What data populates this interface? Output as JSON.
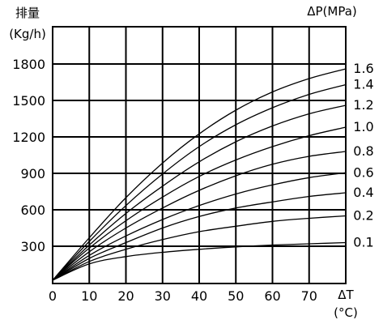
{
  "chart_data": {
    "type": "line",
    "ylabel_line1": "排量",
    "ylabel_line2": "(Kg/h)",
    "xlabel_line1": "ΔT",
    "xlabel_line2": "(°C)",
    "series_label": "ΔP(MPa)",
    "xlim": [
      0,
      80
    ],
    "ylim": [
      0,
      1800
    ],
    "x_ticks": [
      0,
      10,
      20,
      30,
      40,
      50,
      60,
      70
    ],
    "y_ticks": [
      300,
      600,
      900,
      1200,
      1500,
      1800
    ],
    "grid": true,
    "x": [
      0,
      10,
      20,
      30,
      40,
      50,
      60,
      70,
      80
    ],
    "series": [
      {
        "name": "0.1",
        "values": [
          20,
          155,
          215,
          250,
          275,
          295,
          310,
          320,
          330
        ]
      },
      {
        "name": "0.2",
        "values": [
          20,
          175,
          275,
          355,
          420,
          465,
          505,
          530,
          550
        ]
      },
      {
        "name": "0.4",
        "values": [
          20,
          200,
          330,
          450,
          545,
          615,
          665,
          710,
          740
        ]
      },
      {
        "name": "0.6",
        "values": [
          20,
          225,
          385,
          520,
          635,
          730,
          805,
          865,
          905
        ]
      },
      {
        "name": "0.8",
        "values": [
          20,
          255,
          450,
          615,
          760,
          880,
          975,
          1040,
          1080
        ]
      },
      {
        "name": "1.0",
        "values": [
          20,
          285,
          510,
          705,
          875,
          1010,
          1120,
          1210,
          1280
        ]
      },
      {
        "name": "1.2",
        "values": [
          20,
          310,
          570,
          795,
          995,
          1160,
          1290,
          1390,
          1460
        ]
      },
      {
        "name": "1.4",
        "values": [
          20,
          340,
          635,
          895,
          1120,
          1300,
          1440,
          1550,
          1630
        ]
      },
      {
        "name": "1.6",
        "values": [
          20,
          370,
          700,
          985,
          1225,
          1420,
          1570,
          1680,
          1760
        ]
      }
    ]
  }
}
